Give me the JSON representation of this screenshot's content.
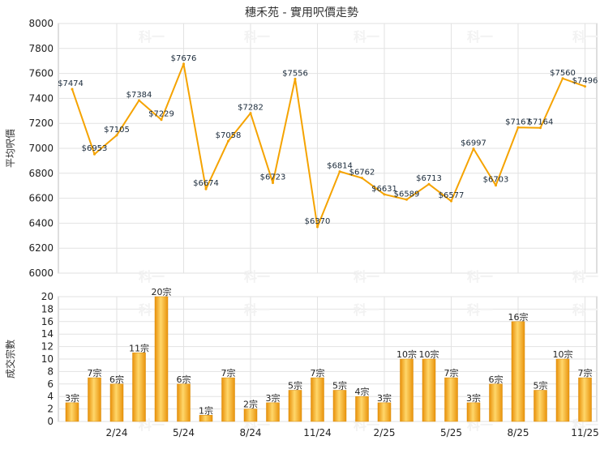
{
  "chart_data": [
    {
      "type": "line",
      "title": "穗禾苑 - 實用呎價走勢",
      "ylabel": "平均呎價",
      "ylim": [
        6000,
        8000
      ],
      "yticks": [
        6000,
        6200,
        6400,
        6600,
        6800,
        7000,
        7200,
        7400,
        7600,
        7800,
        8000
      ],
      "grid": true,
      "color": "#F5A300",
      "value_prefix": "$",
      "values": [
        7474,
        6953,
        7105,
        7384,
        7229,
        7676,
        6674,
        7058,
        7282,
        6723,
        7556,
        6370,
        6814,
        6762,
        6631,
        6589,
        6713,
        6577,
        6997,
        6703,
        7167,
        7164,
        7560,
        7496
      ]
    },
    {
      "type": "bar",
      "ylabel": "成交宗數",
      "ylim": [
        0,
        20
      ],
      "yticks": [
        0,
        2,
        4,
        6,
        8,
        10,
        12,
        14,
        16,
        18,
        20
      ],
      "grid": true,
      "color": "#F2A81D",
      "value_suffix": "宗",
      "values": [
        3,
        7,
        6,
        11,
        20,
        6,
        1,
        7,
        2,
        3,
        5,
        7,
        5,
        4,
        3,
        10,
        10,
        7,
        3,
        6,
        16,
        5,
        10,
        7
      ]
    }
  ],
  "x_axis": {
    "tick_labels": [
      "2/24",
      "5/24",
      "8/24",
      "11/24",
      "2/25",
      "5/25",
      "8/25",
      "11/25"
    ],
    "tick_indices": [
      2,
      5,
      8,
      11,
      14,
      17,
      20,
      23
    ]
  },
  "watermark": "科一"
}
